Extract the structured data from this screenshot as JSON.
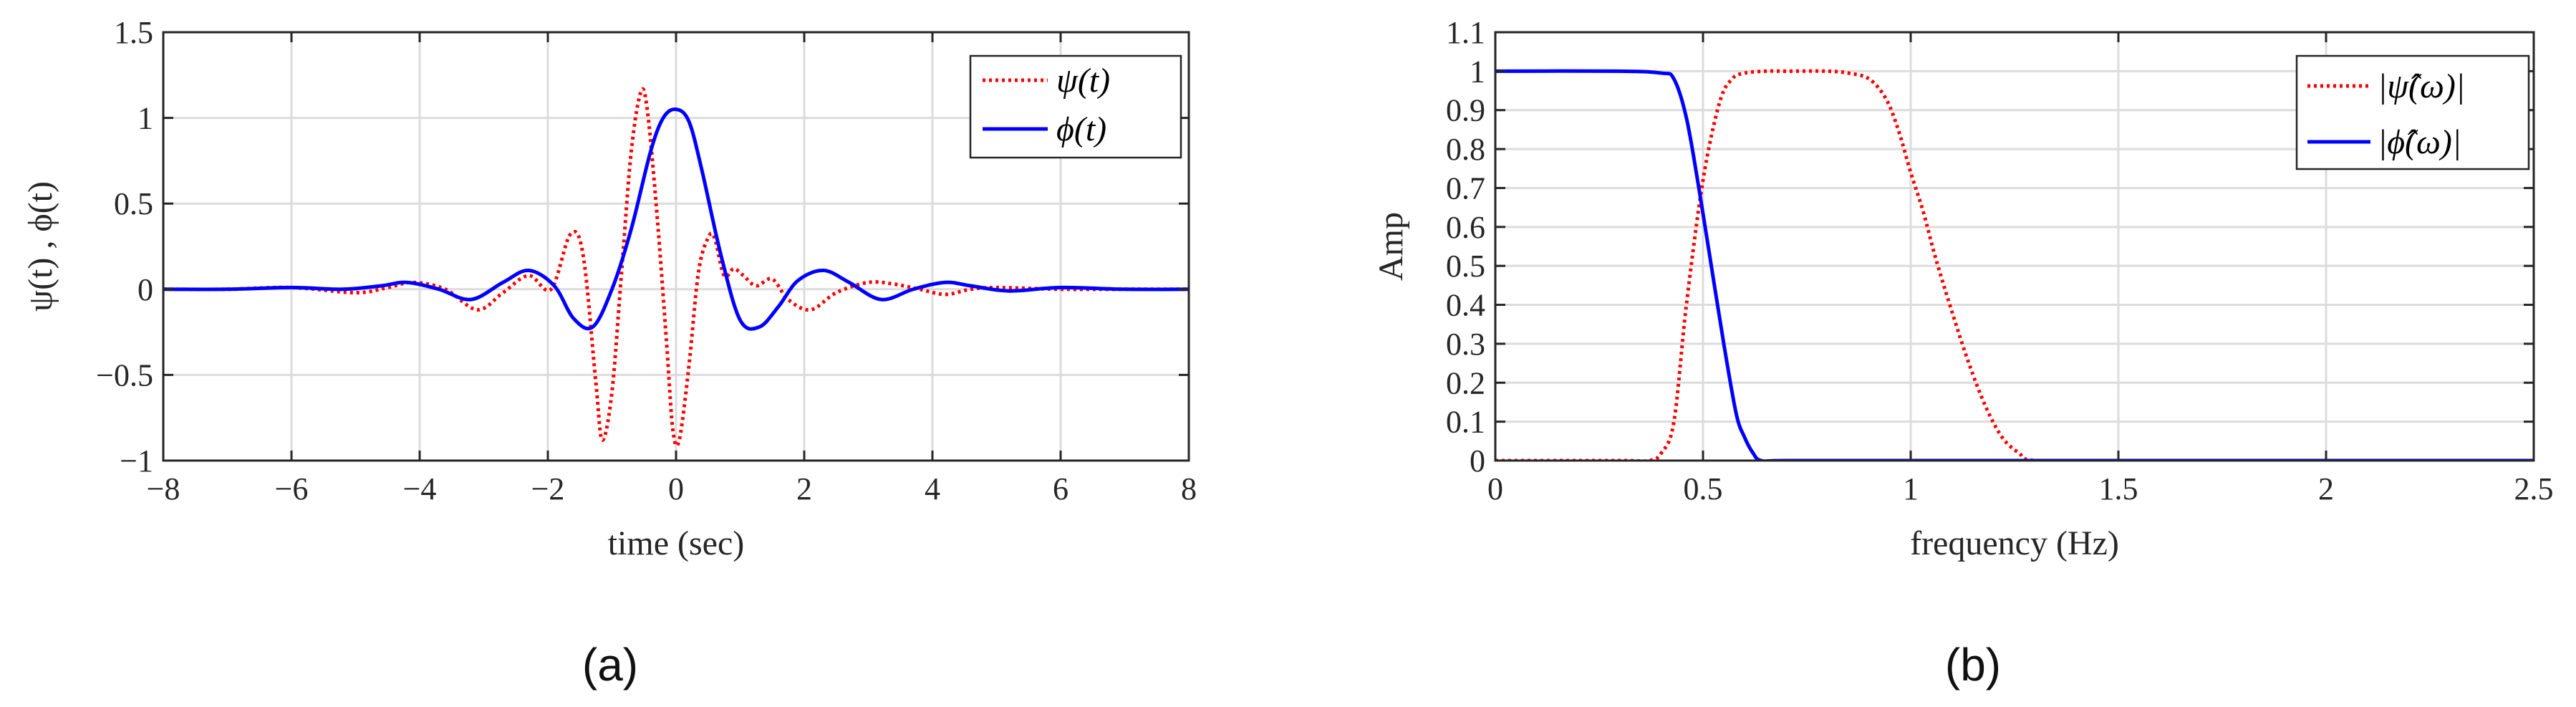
{
  "chart_data": [
    {
      "type": "line",
      "panel_label": "(a)",
      "xlabel": "time (sec)",
      "ylabel": "ψ(t) , ϕ(t)",
      "xlim": [
        -8,
        8
      ],
      "ylim": [
        -1,
        1.5
      ],
      "xticks": [
        -8,
        -6,
        -4,
        -2,
        0,
        2,
        4,
        6,
        8
      ],
      "xtick_labels": [
        "−8",
        "−6",
        "−4",
        "−2",
        "0",
        "2",
        "4",
        "6",
        "8"
      ],
      "yticks": [
        -1,
        -0.5,
        0,
        0.5,
        1,
        1.5
      ],
      "ytick_labels": [
        "−1",
        "−0.5",
        "0",
        "0.5",
        "1",
        "1.5"
      ],
      "grid": true,
      "legend_position": "top-right",
      "series": [
        {
          "name": "ψ(t)",
          "color": "#ff0000",
          "style": "dotted",
          "x": [
            -8,
            -7,
            -6,
            -5,
            -4.5,
            -4.1,
            -3.6,
            -3.1,
            -2.7,
            -2.3,
            -1.95,
            -1.65,
            -1.45,
            -1.25,
            -1.15,
            -1.0,
            -0.85,
            -0.7,
            -0.55,
            -0.45,
            -0.3,
            -0.15,
            -0.05,
            0.05,
            0.2,
            0.35,
            0.5,
            0.6,
            0.75,
            0.9,
            1.05,
            1.25,
            1.5,
            1.75,
            2.1,
            2.5,
            3.0,
            3.4,
            3.8,
            4.2,
            4.6,
            5.0,
            6.0,
            7.0,
            8.0
          ],
          "y": [
            0,
            0,
            0.01,
            -0.02,
            0.01,
            0.04,
            0.0,
            -0.12,
            -0.02,
            0.08,
            0.0,
            0.32,
            0.2,
            -0.55,
            -0.88,
            -0.6,
            0.1,
            0.8,
            1.15,
            1.05,
            0.45,
            -0.3,
            -0.82,
            -0.88,
            -0.45,
            0.1,
            0.3,
            0.3,
            0.08,
            0.12,
            0.08,
            0.02,
            0.06,
            -0.06,
            -0.12,
            -0.02,
            0.04,
            0.03,
            0.0,
            -0.03,
            0.0,
            0.01,
            0,
            0,
            0
          ]
        },
        {
          "name": "ϕ(t)",
          "color": "#0000ff",
          "style": "solid",
          "x": [
            -8,
            -7,
            -6,
            -5.2,
            -4.6,
            -4.2,
            -3.7,
            -3.2,
            -2.7,
            -2.3,
            -1.9,
            -1.6,
            -1.3,
            -1.0,
            -0.7,
            -0.4,
            -0.2,
            0,
            0.2,
            0.4,
            0.7,
            1.0,
            1.3,
            1.6,
            1.9,
            2.3,
            2.7,
            3.2,
            3.7,
            4.2,
            4.6,
            5.2,
            6.0,
            7.0,
            8.0
          ],
          "y": [
            0,
            0,
            0.01,
            0.0,
            0.02,
            0.04,
            0.0,
            -0.06,
            0.04,
            0.11,
            0.02,
            -0.17,
            -0.22,
            0.0,
            0.35,
            0.8,
            1.0,
            1.05,
            0.98,
            0.7,
            0.2,
            -0.18,
            -0.22,
            -0.1,
            0.05,
            0.11,
            0.04,
            -0.06,
            0.0,
            0.04,
            0.02,
            -0.01,
            0.01,
            0,
            0
          ]
        }
      ]
    },
    {
      "type": "line",
      "panel_label": "(b)",
      "xlabel": "frequency (Hz)",
      "ylabel": "Amp",
      "xlim": [
        0,
        2.5
      ],
      "ylim": [
        0,
        1.1
      ],
      "xticks": [
        0,
        0.5,
        1,
        1.5,
        2,
        2.5
      ],
      "xtick_labels": [
        "0",
        "0.5",
        "1",
        "1.5",
        "2",
        "2.5"
      ],
      "yticks": [
        0,
        0.1,
        0.2,
        0.3,
        0.4,
        0.5,
        0.6,
        0.7,
        0.8,
        0.9,
        1,
        1.1
      ],
      "ytick_labels": [
        "0",
        "0.1",
        "0.2",
        "0.3",
        "0.4",
        "0.5",
        "0.6",
        "0.7",
        "0.8",
        "0.9",
        "1",
        "1.1"
      ],
      "grid": true,
      "legend_position": "top-right",
      "series": [
        {
          "name": "|ψ̂(ω)|",
          "color": "#ff0000",
          "style": "dotted",
          "x": [
            0,
            0.3,
            0.37,
            0.4,
            0.43,
            0.46,
            0.5,
            0.54,
            0.57,
            0.6,
            0.65,
            0.7,
            0.8,
            0.85,
            0.9,
            0.94,
            0.97,
            1.0,
            1.03,
            1.06,
            1.1,
            1.14,
            1.18,
            1.22,
            1.26,
            1.3,
            1.5,
            2.0,
            2.5
          ],
          "y": [
            0,
            0,
            0.0,
            0.02,
            0.1,
            0.4,
            0.72,
            0.92,
            0.98,
            0.995,
            1.0,
            1.0,
            1.0,
            0.995,
            0.98,
            0.93,
            0.85,
            0.74,
            0.64,
            0.52,
            0.38,
            0.25,
            0.14,
            0.06,
            0.02,
            0.0,
            0,
            0,
            0
          ]
        },
        {
          "name": "|ϕ̂(ω)|",
          "color": "#0000ff",
          "style": "solid",
          "x": [
            0,
            0.3,
            0.4,
            0.43,
            0.46,
            0.49,
            0.52,
            0.55,
            0.58,
            0.6,
            0.62,
            0.64,
            0.7,
            1.0,
            2.0,
            2.5
          ],
          "y": [
            1.0,
            1.0,
            0.995,
            0.98,
            0.88,
            0.7,
            0.5,
            0.3,
            0.12,
            0.06,
            0.02,
            0.0,
            0,
            0,
            0,
            0
          ]
        }
      ]
    }
  ]
}
